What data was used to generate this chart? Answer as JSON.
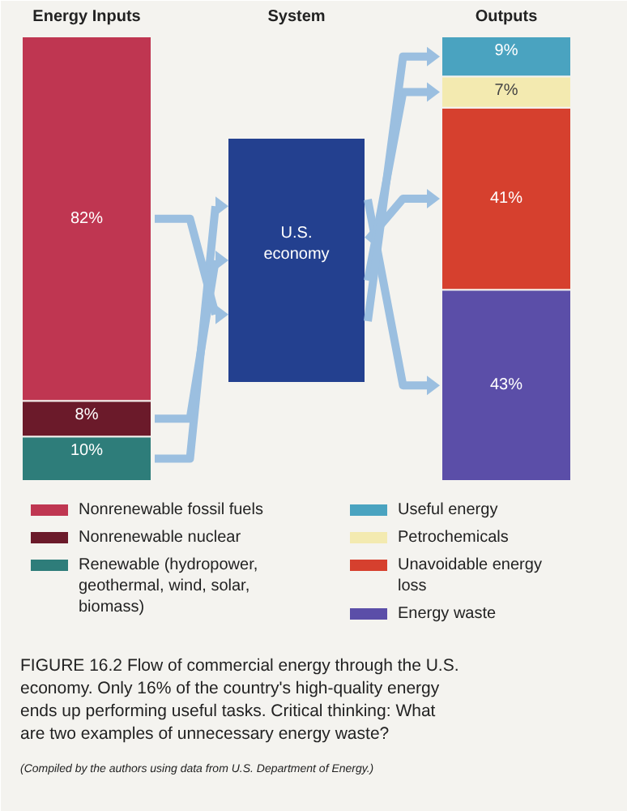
{
  "chart_data": {
    "type": "other",
    "legend": "bottom",
    "categories": [
      "Energy Inputs",
      "System",
      "Outputs"
    ],
    "series": [
      {
        "name": "Renewable (hydropower, geothermal, wind, solar, biomass)",
        "color": "#2e7d7a",
        "values": [
          10,
          null,
          null
        ],
        "value_labels": [
          "10%",
          null,
          null
        ]
      },
      {
        "name": "Nonrenewable nuclear",
        "color": "#6b1a2a",
        "values": [
          8,
          null,
          null
        ],
        "value_labels": [
          "8%",
          null,
          null
        ]
      },
      {
        "name": "Nonrenewable fossil fuels",
        "color": "#bf3651",
        "values": [
          82,
          null,
          null
        ],
        "value_labels": [
          "82%",
          null,
          null
        ]
      },
      {
        "name": "Energy waste",
        "color": "#5b4ea8",
        "values": [
          null,
          null,
          43
        ],
        "value_labels": [
          null,
          null,
          "43%"
        ]
      },
      {
        "name": "Unavoidable energy loss",
        "color": "#d6402e",
        "values": [
          null,
          null,
          41
        ],
        "value_labels": [
          null,
          null,
          "41%"
        ]
      },
      {
        "name": "Petrochemicals",
        "color": "#f3eab0",
        "values": [
          null,
          null,
          7
        ],
        "value_labels": [
          null,
          null,
          "7%"
        ]
      },
      {
        "name": "Useful energy",
        "color": "#4aa3c0",
        "values": [
          null,
          null,
          9
        ],
        "value_labels": [
          null,
          null,
          "9%"
        ]
      }
    ],
    "annotations": [
      {
        "text": "U.S. economy",
        "x": "System"
      },
      "FIGURE 16.2 Flow of commercial energy through the U.S. economy. Only 16% of the country's high-quality energy ends up performing useful tasks. Critical thinking: What are two examples of unnecessary energy waste?",
      "(Compiled by the authors using data from U.S. Department of Energy.)"
    ]
  }
}
